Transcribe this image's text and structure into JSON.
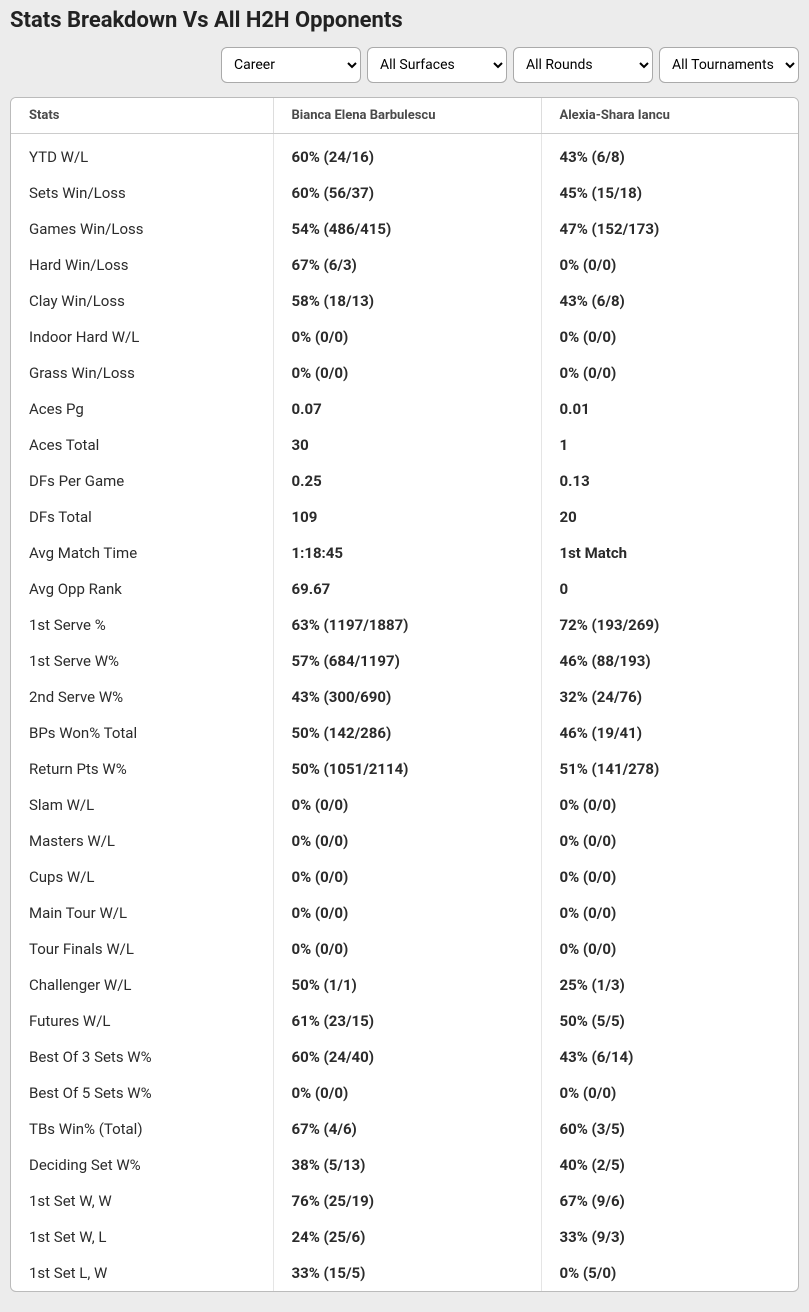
{
  "page": {
    "title": "Stats Breakdown Vs All H2H Opponents"
  },
  "filters": {
    "period": {
      "selected": "Career",
      "options": [
        "Career"
      ]
    },
    "surface": {
      "selected": "All Surfaces",
      "options": [
        "All Surfaces"
      ]
    },
    "round": {
      "selected": "All Rounds",
      "options": [
        "All Rounds"
      ]
    },
    "tournament": {
      "selected": "All Tournaments",
      "options": [
        "All Tournaments"
      ]
    }
  },
  "table": {
    "columns": [
      "Stats",
      "Bianca Elena Barbulescu",
      "Alexia-Shara Iancu"
    ],
    "rows": [
      [
        "YTD W/L",
        "60% (24/16)",
        "43% (6/8)"
      ],
      [
        "Sets Win/Loss",
        "60% (56/37)",
        "45% (15/18)"
      ],
      [
        "Games Win/Loss",
        "54% (486/415)",
        "47% (152/173)"
      ],
      [
        "Hard Win/Loss",
        "67% (6/3)",
        "0% (0/0)"
      ],
      [
        "Clay Win/Loss",
        "58% (18/13)",
        "43% (6/8)"
      ],
      [
        "Indoor Hard W/L",
        "0% (0/0)",
        "0% (0/0)"
      ],
      [
        "Grass Win/Loss",
        "0% (0/0)",
        "0% (0/0)"
      ],
      [
        "Aces Pg",
        "0.07",
        "0.01"
      ],
      [
        "Aces Total",
        "30",
        "1"
      ],
      [
        "DFs Per Game",
        "0.25",
        "0.13"
      ],
      [
        "DFs Total",
        "109",
        "20"
      ],
      [
        "Avg Match Time",
        "1:18:45",
        "1st Match"
      ],
      [
        "Avg Opp Rank",
        "69.67",
        "0"
      ],
      [
        "1st Serve %",
        "63% (1197/1887)",
        "72% (193/269)"
      ],
      [
        "1st Serve W%",
        "57% (684/1197)",
        "46% (88/193)"
      ],
      [
        "2nd Serve W%",
        "43% (300/690)",
        "32% (24/76)"
      ],
      [
        "BPs Won% Total",
        "50% (142/286)",
        "46% (19/41)"
      ],
      [
        "Return Pts W%",
        "50% (1051/2114)",
        "51% (141/278)"
      ],
      [
        "Slam W/L",
        "0% (0/0)",
        "0% (0/0)"
      ],
      [
        "Masters W/L",
        "0% (0/0)",
        "0% (0/0)"
      ],
      [
        "Cups W/L",
        "0% (0/0)",
        "0% (0/0)"
      ],
      [
        "Main Tour W/L",
        "0% (0/0)",
        "0% (0/0)"
      ],
      [
        "Tour Finals W/L",
        "0% (0/0)",
        "0% (0/0)"
      ],
      [
        "Challenger W/L",
        "50% (1/1)",
        "25% (1/3)"
      ],
      [
        "Futures W/L",
        "61% (23/15)",
        "50% (5/5)"
      ],
      [
        "Best Of 3 Sets W%",
        "60% (24/40)",
        "43% (6/14)"
      ],
      [
        "Best Of 5 Sets W%",
        "0% (0/0)",
        "0% (0/0)"
      ],
      [
        "TBs Win% (Total)",
        "67% (4/6)",
        "60% (3/5)"
      ],
      [
        "Deciding Set W%",
        "38% (5/13)",
        "40% (2/5)"
      ],
      [
        "1st Set W, W",
        "76% (25/19)",
        "67% (9/6)"
      ],
      [
        "1st Set W, L",
        "24% (25/6)",
        "33% (9/3)"
      ],
      [
        "1st Set L, W",
        "33% (15/5)",
        "0% (5/0)"
      ]
    ]
  },
  "styling": {
    "background_color": "#ececec",
    "table_background": "#ffffff",
    "table_border_color": "#bbbbbb",
    "header_text_color": "#4a4a4a",
    "cell_text_color": "#2b2b2b",
    "column_divider": "#e5e5e5",
    "title_fontsize": 22,
    "header_fontsize": 13,
    "cell_fontsize": 15
  }
}
